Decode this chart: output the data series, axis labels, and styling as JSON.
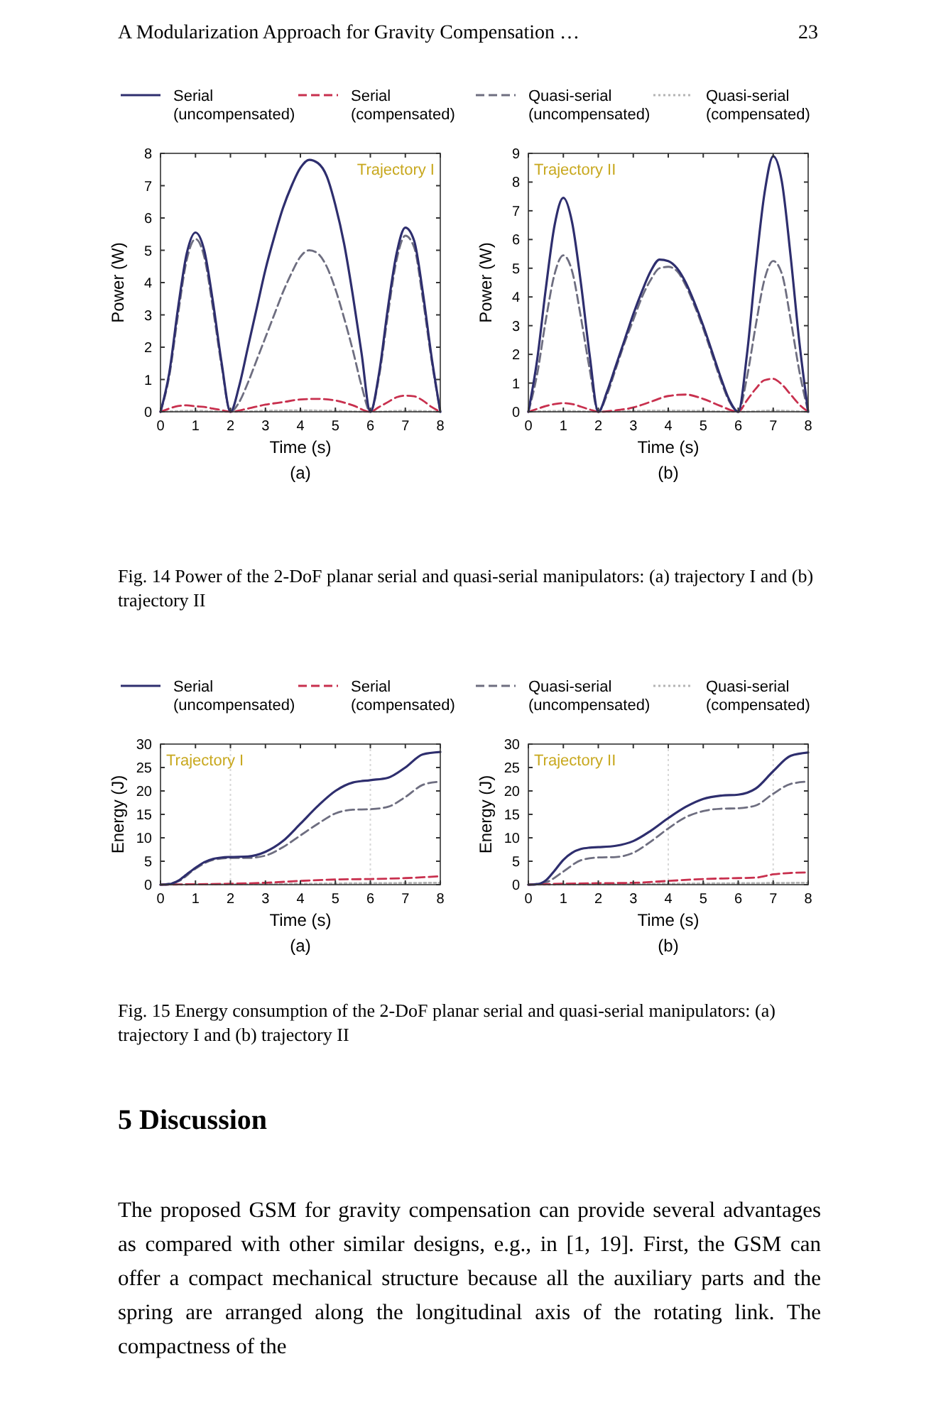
{
  "chart_data": [
    {
      "type": "line",
      "xlabel": "Time (s)",
      "ylabel": "Power (W)",
      "xlim": [
        0,
        8
      ],
      "xticks": [
        0,
        1,
        2,
        3,
        4,
        5,
        6,
        7,
        8
      ],
      "ylim": [
        0,
        8
      ],
      "yticks": [
        0,
        1,
        2,
        3,
        4,
        5,
        6,
        7,
        8
      ],
      "legend": "top",
      "annotations": [
        "(a)",
        "Trajectory I",
        "A Modularization Approach for Gravity Compensation …",
        "23"
      ],
      "series": [
        {
          "name": "Serial (uncompensated)",
          "color": "#2e2e6e",
          "line_style": "solid",
          "x": [
            0,
            0.25,
            0.5,
            0.75,
            1,
            1.25,
            1.5,
            1.75,
            2,
            2.25,
            2.5,
            2.75,
            3,
            3.25,
            3.5,
            3.75,
            4,
            4.25,
            4.5,
            4.75,
            5,
            5.25,
            5.5,
            5.75,
            6,
            6.25,
            6.5,
            6.75,
            7,
            7.25,
            7.5,
            7.75,
            8
          ],
          "values": [
            0,
            1.2,
            3.2,
            4.9,
            5.55,
            5.0,
            3.4,
            1.5,
            0,
            0.8,
            2.0,
            3.2,
            4.4,
            5.4,
            6.3,
            7.0,
            7.55,
            7.8,
            7.7,
            7.3,
            6.4,
            5.2,
            3.6,
            1.8,
            0,
            1.2,
            3.2,
            4.9,
            5.7,
            5.3,
            3.7,
            1.7,
            0
          ]
        },
        {
          "name": "Serial (compensated)",
          "color": "#c8304e",
          "line_style": "dashed",
          "x": [
            0,
            0.25,
            0.5,
            0.75,
            1,
            1.25,
            1.5,
            1.75,
            2,
            2.5,
            3,
            3.5,
            4,
            4.5,
            5,
            5.5,
            6,
            6.25,
            6.5,
            6.75,
            7,
            7.25,
            7.5,
            7.75,
            8
          ],
          "values": [
            0,
            0.1,
            0.18,
            0.2,
            0.17,
            0.15,
            0.1,
            0.05,
            0,
            0.1,
            0.22,
            0.3,
            0.38,
            0.4,
            0.35,
            0.2,
            0,
            0.15,
            0.3,
            0.45,
            0.5,
            0.48,
            0.35,
            0.15,
            0
          ]
        },
        {
          "name": "Quasi-serial (uncompensated)",
          "color": "#6e6e80",
          "line_style": "dashed",
          "x": [
            0,
            0.25,
            0.5,
            0.75,
            1,
            1.25,
            1.5,
            1.75,
            2,
            2.25,
            2.5,
            2.75,
            3,
            3.25,
            3.5,
            3.75,
            4,
            4.25,
            4.5,
            4.75,
            5,
            5.25,
            5.5,
            5.75,
            6,
            6.25,
            6.5,
            6.75,
            7,
            7.25,
            7.5,
            7.75,
            8
          ],
          "values": [
            0,
            1.1,
            3.0,
            4.7,
            5.35,
            4.8,
            3.2,
            1.4,
            0,
            0.3,
            0.9,
            1.6,
            2.3,
            3.0,
            3.7,
            4.3,
            4.8,
            5.0,
            4.9,
            4.5,
            3.8,
            2.9,
            1.9,
            0.8,
            0,
            1.1,
            3.0,
            4.7,
            5.45,
            5.1,
            3.5,
            1.6,
            0
          ]
        },
        {
          "name": "Quasi-serial (compensated)",
          "color": "#b4b4b4",
          "line_style": "dotted",
          "x": [
            0,
            1,
            2,
            3,
            4,
            5,
            6,
            7,
            8
          ],
          "values": [
            0,
            0.03,
            0,
            0.03,
            0.04,
            0.03,
            0,
            0.03,
            0
          ]
        }
      ]
    },
    {
      "type": "line",
      "xlabel": "Time (s)",
      "ylabel": "Power (W)",
      "xlim": [
        0,
        8
      ],
      "xticks": [
        0,
        1,
        2,
        3,
        4,
        5,
        6,
        7,
        8
      ],
      "ylim": [
        0,
        9
      ],
      "yticks": [
        0,
        1,
        2,
        3,
        4,
        5,
        6,
        7,
        8,
        9
      ],
      "annotations": [
        "(b)",
        "Trajectory II",
        "Fig. 14 Power of the 2-DoF planar serial and quasi-serial manipulators: (a) trajectory I and (b) trajectory II"
      ],
      "series": [
        {
          "color": "#2e2e6e",
          "line_style": "solid",
          "x": [
            0,
            0.25,
            0.5,
            0.75,
            1,
            1.25,
            1.5,
            1.75,
            2,
            2.25,
            2.5,
            2.75,
            3,
            3.25,
            3.5,
            3.75,
            4,
            4.25,
            4.5,
            4.75,
            5,
            5.25,
            5.5,
            5.75,
            6,
            6.25,
            6.5,
            6.75,
            7,
            7.25,
            7.5,
            7.75,
            8
          ],
          "values": [
            0,
            1.8,
            4.3,
            6.5,
            7.45,
            6.6,
            4.5,
            2.0,
            0,
            0.7,
            1.6,
            2.5,
            3.4,
            4.2,
            4.9,
            5.3,
            5.25,
            5.0,
            4.5,
            3.8,
            3.0,
            2.1,
            1.2,
            0.4,
            0,
            2.0,
            5.0,
            7.6,
            8.9,
            8.0,
            5.4,
            2.4,
            0
          ]
        },
        {
          "color": "#c8304e",
          "line_style": "dashed",
          "x": [
            0,
            0.25,
            0.5,
            0.75,
            1,
            1.25,
            1.5,
            1.75,
            2,
            2.5,
            3,
            3.5,
            4,
            4.5,
            5,
            5.5,
            6,
            6.25,
            6.5,
            6.75,
            7,
            7.25,
            7.5,
            7.75,
            8
          ],
          "values": [
            0,
            0.1,
            0.2,
            0.27,
            0.3,
            0.27,
            0.18,
            0.08,
            0,
            0.05,
            0.15,
            0.35,
            0.55,
            0.6,
            0.45,
            0.2,
            0,
            0.4,
            0.8,
            1.1,
            1.15,
            0.95,
            0.6,
            0.25,
            0
          ]
        },
        {
          "color": "#6e6e80",
          "line_style": "dashed",
          "x": [
            0,
            0.25,
            0.5,
            0.75,
            1,
            1.25,
            1.5,
            1.75,
            2,
            2.25,
            2.5,
            2.75,
            3,
            3.25,
            3.5,
            3.75,
            4,
            4.25,
            4.5,
            4.75,
            5,
            5.25,
            5.5,
            5.75,
            6,
            6.25,
            6.5,
            6.75,
            7,
            7.25,
            7.5,
            7.75,
            8
          ],
          "values": [
            0,
            1.3,
            3.2,
            4.8,
            5.45,
            4.9,
            3.3,
            1.5,
            0,
            0.6,
            1.5,
            2.4,
            3.2,
            4.0,
            4.6,
            5.0,
            5.05,
            4.9,
            4.4,
            3.7,
            2.9,
            2.0,
            1.1,
            0.35,
            0,
            1.2,
            3.0,
            4.6,
            5.25,
            4.8,
            3.2,
            1.4,
            0
          ]
        },
        {
          "color": "#b4b4b4",
          "line_style": "dotted",
          "x": [
            0,
            1,
            2,
            3,
            4,
            5,
            6,
            7,
            8
          ],
          "values": [
            0,
            0.03,
            0,
            0.03,
            0.04,
            0.03,
            0,
            0.04,
            0
          ]
        }
      ]
    },
    {
      "type": "line",
      "xlabel": "Time (s)",
      "ylabel": "Energy (J)",
      "xlim": [
        0,
        8
      ],
      "xticks": [
        0,
        1,
        2,
        3,
        4,
        5,
        6,
        7,
        8
      ],
      "ylim": [
        0,
        30
      ],
      "yticks": [
        0,
        5,
        10,
        15,
        20,
        25,
        30
      ],
      "legend": "top",
      "annotations": [
        "(a)",
        "Trajectory I"
      ],
      "ref_lines": [
        {
          "axis": "x",
          "value": 2,
          "color": "#d8d8d8",
          "line_style": "dotted"
        },
        {
          "axis": "x",
          "value": 6,
          "color": "#d8d8d8",
          "line_style": "dotted"
        }
      ],
      "series": [
        {
          "name": "Serial (uncompensated)",
          "color": "#2e2e6e",
          "line_style": "solid",
          "x": [
            0,
            0.25,
            0.5,
            0.75,
            1,
            1.25,
            1.5,
            1.75,
            2,
            2.5,
            3,
            3.5,
            4,
            4.5,
            5,
            5.5,
            6,
            6.5,
            7,
            7.5,
            8
          ],
          "values": [
            0,
            0.1,
            0.8,
            2.2,
            3.6,
            4.8,
            5.5,
            5.8,
            5.9,
            6.0,
            7.0,
            9.3,
            13.0,
            16.8,
            20.0,
            21.8,
            22.3,
            22.8,
            25.0,
            27.8,
            28.3
          ]
        },
        {
          "name": "Serial (compensated)",
          "color": "#c8304e",
          "line_style": "dashed",
          "x": [
            0,
            1,
            2,
            3,
            4,
            5,
            6,
            7,
            8
          ],
          "values": [
            0,
            0.1,
            0.2,
            0.4,
            0.8,
            1.1,
            1.2,
            1.4,
            1.8
          ]
        },
        {
          "name": "Quasi-serial (uncompensated)",
          "color": "#6e6e80",
          "line_style": "dashed",
          "x": [
            0,
            0.5,
            1,
            1.5,
            2,
            2.5,
            3,
            3.5,
            4,
            4.5,
            5,
            5.5,
            6,
            6.5,
            7,
            7.5,
            8
          ],
          "values": [
            0,
            0.7,
            3.4,
            5.3,
            5.7,
            5.7,
            6.2,
            8.0,
            10.5,
            13.0,
            15.2,
            16.0,
            16.1,
            16.6,
            18.7,
            21.3,
            22.0
          ]
        },
        {
          "name": "Quasi-serial (compensated)",
          "color": "#b4b4b4",
          "line_style": "dotted",
          "x": [
            0,
            2,
            4,
            6,
            8
          ],
          "values": [
            0,
            0.1,
            0.2,
            0.3,
            0.4
          ]
        }
      ]
    },
    {
      "type": "line",
      "xlabel": "Time (s)",
      "ylabel": "Energy (J)",
      "xlim": [
        0,
        8
      ],
      "xticks": [
        0,
        1,
        2,
        3,
        4,
        5,
        6,
        7,
        8
      ],
      "ylim": [
        0,
        30
      ],
      "yticks": [
        0,
        5,
        10,
        15,
        20,
        25,
        30
      ],
      "annotations": [
        "(b)",
        "Trajectory II",
        "Fig. 15 Energy consumption of the 2-DoF planar serial and quasi-serial manipulators: (a) trajectory I and (b) trajectory II",
        "5 Discussion",
        "The proposed GSM for gravity compensation can provide several advantages as compared with other similar designs, e.g., in [1, 19]. First, the GSM can offer a compact mechanical structure because all the auxiliary parts and the spring are arranged along the longitudinal axis of the rotating link. The compactness of the"
      ],
      "ref_lines": [
        {
          "axis": "x",
          "value": 4,
          "color": "#d8d8d8",
          "line_style": "dotted"
        },
        {
          "axis": "x",
          "value": 7,
          "color": "#d8d8d8",
          "line_style": "dotted"
        }
      ],
      "series": [
        {
          "color": "#2e2e6e",
          "line_style": "solid",
          "x": [
            0,
            0.25,
            0.5,
            0.75,
            1,
            1.25,
            1.5,
            1.75,
            2,
            2.5,
            3,
            3.5,
            4,
            4.5,
            5,
            5.5,
            6,
            6.5,
            7,
            7.5,
            8
          ],
          "values": [
            0,
            0.1,
            0.9,
            3.0,
            5.3,
            6.8,
            7.6,
            7.9,
            8.0,
            8.3,
            9.3,
            11.5,
            14.2,
            16.6,
            18.3,
            19.0,
            19.2,
            20.5,
            24.2,
            27.5,
            28.2
          ]
        },
        {
          "color": "#c8304e",
          "line_style": "dashed",
          "x": [
            0,
            1,
            2,
            3,
            4,
            5,
            6,
            6.5,
            7,
            7.5,
            8
          ],
          "values": [
            0,
            0.2,
            0.3,
            0.4,
            0.8,
            1.2,
            1.4,
            1.5,
            2.2,
            2.5,
            2.6
          ]
        },
        {
          "color": "#6e6e80",
          "line_style": "dashed",
          "x": [
            0,
            0.5,
            1,
            1.5,
            2,
            2.5,
            3,
            3.5,
            4,
            4.5,
            5,
            5.5,
            6,
            6.5,
            7,
            7.5,
            8
          ],
          "values": [
            0,
            0.5,
            2.8,
            5.2,
            5.8,
            5.9,
            6.8,
            9.2,
            12.0,
            14.4,
            15.7,
            16.2,
            16.3,
            16.9,
            19.4,
            21.5,
            22.0
          ]
        },
        {
          "color": "#b4b4b4",
          "line_style": "dotted",
          "x": [
            0,
            2,
            4,
            6,
            8
          ],
          "values": [
            0,
            0.1,
            0.2,
            0.3,
            0.4
          ]
        }
      ]
    }
  ]
}
